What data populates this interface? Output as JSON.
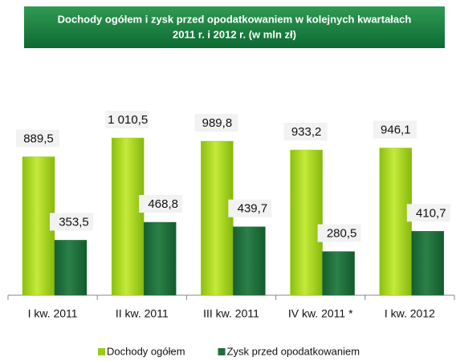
{
  "chart_data": {
    "type": "bar",
    "title": [
      "Dochody ogółem i zysk przed opodatkowaniem w kolejnych kwartałach",
      "2011 r. i 2012 r. (w mln zł)"
    ],
    "categories": [
      "I kw. 2011",
      "II kw. 2011",
      "III kw. 2011",
      "IV kw. 2011 *",
      "I kw. 2012"
    ],
    "series": [
      {
        "name": "Dochody ogółem",
        "color": "#9ccb19",
        "values": [
          889.5,
          1010.5,
          989.8,
          933.2,
          946.1
        ],
        "value_labels": [
          "889,5",
          "1 010,5",
          "989,8",
          "933,2",
          "946,1"
        ]
      },
      {
        "name": "Zysk przed opodatkowaniem",
        "color": "#1f6e3c",
        "values": [
          353.5,
          468.8,
          439.7,
          280.5,
          410.7
        ],
        "value_labels": [
          "353,5",
          "468,8",
          "439,7",
          "280,5",
          "410,7"
        ]
      }
    ]
  }
}
